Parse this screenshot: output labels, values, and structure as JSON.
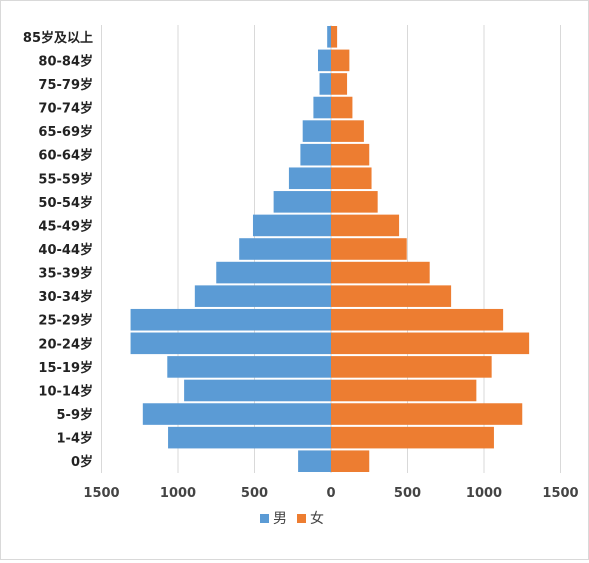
{
  "chart_data": {
    "type": "bar",
    "orientation": "horizontal-pyramid",
    "categories": [
      "0岁",
      "1-4岁",
      "5-9岁",
      "10-14岁",
      "15-19岁",
      "20-24岁",
      "25-29岁",
      "30-34岁",
      "35-39岁",
      "40-44岁",
      "45-49岁",
      "50-54岁",
      "55-59岁",
      "60-64岁",
      "65-69岁",
      "70-74岁",
      "75-79岁",
      "80-84岁",
      "85岁及以上"
    ],
    "series": [
      {
        "name": "男",
        "color": "#5b9bd5",
        "side": "left",
        "values": [
          215,
          1065,
          1230,
          960,
          1070,
          1310,
          1310,
          890,
          750,
          600,
          510,
          375,
          275,
          200,
          185,
          115,
          75,
          85,
          25
        ]
      },
      {
        "name": "女",
        "color": "#ed7d31",
        "side": "right",
        "values": [
          250,
          1065,
          1250,
          950,
          1050,
          1295,
          1125,
          785,
          645,
          495,
          445,
          305,
          265,
          250,
          215,
          140,
          105,
          120,
          40
        ]
      }
    ],
    "xticks": [
      "1500",
      "1000",
      "500",
      "0",
      "500",
      "1000",
      "1500"
    ],
    "xlim": [
      -1500,
      1500
    ],
    "grid": true,
    "legend_position": "bottom"
  }
}
